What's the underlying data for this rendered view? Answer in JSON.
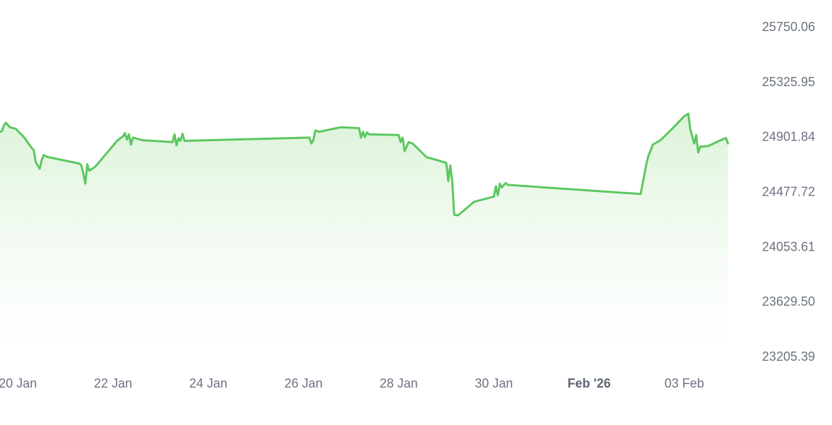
{
  "chart_data": {
    "type": "area",
    "title": "",
    "xlabel": "",
    "ylabel": "",
    "x_axis": {
      "ticks": [
        {
          "date": "2026-01-20",
          "label": "20 Jan",
          "bold": false
        },
        {
          "date": "2026-01-22",
          "label": "22 Jan",
          "bold": false
        },
        {
          "date": "2026-01-24",
          "label": "24 Jan",
          "bold": false
        },
        {
          "date": "2026-01-26",
          "label": "26 Jan",
          "bold": false
        },
        {
          "date": "2026-01-28",
          "label": "28 Jan",
          "bold": false
        },
        {
          "date": "2026-01-30",
          "label": "30 Jan",
          "bold": false
        },
        {
          "date": "2026-02-01",
          "label": "Feb '26",
          "bold": true
        },
        {
          "date": "2026-02-03",
          "label": "03 Feb",
          "bold": false
        }
      ],
      "xlim": [
        "2026-01-19 15:00",
        "2026-02-04 12:00"
      ]
    },
    "y_axis": {
      "ticks": [
        "25750.06",
        "25325.95",
        "24901.84",
        "24477.72",
        "24053.61",
        "23629.50",
        "23205.39"
      ],
      "ylim": [
        23205.39,
        25750.06
      ],
      "position": "right"
    },
    "grid": false,
    "legend": "none",
    "colors": {
      "line": "#5cc760",
      "area_top": "#d9f2d6",
      "area_bottom": "#ffffff",
      "tick_text": "#6b7280"
    },
    "series": [
      {
        "values": [
          [
            "2026-01-19 15:00",
            24940
          ],
          [
            "2026-01-19 16:00",
            24945
          ],
          [
            "2026-01-19 17:00",
            24990
          ],
          [
            "2026-01-19 18:00",
            25010
          ],
          [
            "2026-01-19 20:00",
            24975
          ],
          [
            "2026-01-19 23:00",
            24962
          ],
          [
            "2026-01-20 03:00",
            24900
          ],
          [
            "2026-01-20 07:00",
            24815
          ],
          [
            "2026-01-20 08:00",
            24800
          ],
          [
            "2026-01-20 09:00",
            24705
          ],
          [
            "2026-01-20 10:00",
            24680
          ],
          [
            "2026-01-20 11:00",
            24655
          ],
          [
            "2026-01-20 12:00",
            24720
          ],
          [
            "2026-01-20 13:00",
            24760
          ],
          [
            "2026-01-20 15:00",
            24745
          ],
          [
            "2026-01-21 07:00",
            24695
          ],
          [
            "2026-01-21 08:00",
            24680
          ],
          [
            "2026-01-21 09:00",
            24620
          ],
          [
            "2026-01-21 10:00",
            24540
          ],
          [
            "2026-01-21 11:00",
            24690
          ],
          [
            "2026-01-21 12:00",
            24640
          ],
          [
            "2026-01-21 15:00",
            24670
          ],
          [
            "2026-01-21 20:00",
            24760
          ],
          [
            "2026-01-22 02:00",
            24870
          ],
          [
            "2026-01-22 05:00",
            24905
          ],
          [
            "2026-01-22 06:00",
            24930
          ],
          [
            "2026-01-22 07:00",
            24880
          ],
          [
            "2026-01-22 08:00",
            24920
          ],
          [
            "2026-01-22 09:00",
            24840
          ],
          [
            "2026-01-22 10:00",
            24895
          ],
          [
            "2026-01-22 15:00",
            24875
          ],
          [
            "2026-01-23 06:00",
            24860
          ],
          [
            "2026-01-23 07:00",
            24920
          ],
          [
            "2026-01-23 08:00",
            24835
          ],
          [
            "2026-01-23 09:00",
            24890
          ],
          [
            "2026-01-23 10:00",
            24870
          ],
          [
            "2026-01-23 11:00",
            24925
          ],
          [
            "2026-01-23 12:00",
            24870
          ],
          [
            "2026-01-26 03:00",
            24895
          ],
          [
            "2026-01-26 04:00",
            24850
          ],
          [
            "2026-01-26 05:00",
            24875
          ],
          [
            "2026-01-26 06:00",
            24950
          ],
          [
            "2026-01-26 08:00",
            24940
          ],
          [
            "2026-01-26 14:00",
            24960
          ],
          [
            "2026-01-26 19:00",
            24975
          ],
          [
            "2026-01-27 04:00",
            24968
          ],
          [
            "2026-01-27 05:00",
            24895
          ],
          [
            "2026-01-27 06:00",
            24940
          ],
          [
            "2026-01-27 07:00",
            24900
          ],
          [
            "2026-01-27 08:00",
            24935
          ],
          [
            "2026-01-27 09:00",
            24920
          ],
          [
            "2026-01-28 00:00",
            24915
          ],
          [
            "2026-01-28 01:00",
            24860
          ],
          [
            "2026-01-28 02:00",
            24895
          ],
          [
            "2026-01-28 03:00",
            24790
          ],
          [
            "2026-01-28 05:00",
            24860
          ],
          [
            "2026-01-28 07:00",
            24850
          ],
          [
            "2026-01-28 14:00",
            24745
          ],
          [
            "2026-01-29 00:00",
            24700
          ],
          [
            "2026-01-29 01:00",
            24560
          ],
          [
            "2026-01-29 02:00",
            24680
          ],
          [
            "2026-01-29 03:00",
            24560
          ],
          [
            "2026-01-29 04:00",
            24300
          ],
          [
            "2026-01-29 06:00",
            24295
          ],
          [
            "2026-01-29 14:00",
            24400
          ],
          [
            "2026-01-30 00:00",
            24440
          ],
          [
            "2026-01-30 01:00",
            24520
          ],
          [
            "2026-01-30 02:00",
            24450
          ],
          [
            "2026-01-30 03:00",
            24540
          ],
          [
            "2026-01-30 04:00",
            24510
          ],
          [
            "2026-01-30 05:00",
            24530
          ],
          [
            "2026-01-30 06:00",
            24545
          ],
          [
            "2026-01-30 07:00",
            24530
          ],
          [
            "2026-02-02 02:00",
            24460
          ],
          [
            "2026-02-02 03:00",
            24540
          ],
          [
            "2026-02-02 05:00",
            24700
          ],
          [
            "2026-02-02 06:00",
            24760
          ],
          [
            "2026-02-02 07:00",
            24795
          ],
          [
            "2026-02-02 08:00",
            24840
          ],
          [
            "2026-02-02 12:00",
            24875
          ],
          [
            "2026-02-02 18:00",
            24965
          ],
          [
            "2026-02-03 00:00",
            25060
          ],
          [
            "2026-02-03 02:00",
            25080
          ],
          [
            "2026-02-03 03:00",
            24960
          ],
          [
            "2026-02-03 05:00",
            24850
          ],
          [
            "2026-02-03 06:00",
            24915
          ],
          [
            "2026-02-03 07:00",
            24780
          ],
          [
            "2026-02-03 08:00",
            24825
          ],
          [
            "2026-02-03 12:00",
            24830
          ],
          [
            "2026-02-03 19:00",
            24880
          ],
          [
            "2026-02-03 21:00",
            24892
          ],
          [
            "2026-02-03 22:00",
            24850
          ]
        ]
      }
    ]
  }
}
